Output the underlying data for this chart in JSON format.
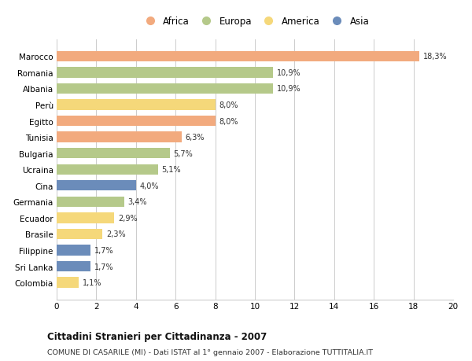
{
  "countries": [
    "Marocco",
    "Romania",
    "Albania",
    "Perù",
    "Egitto",
    "Tunisia",
    "Bulgaria",
    "Ucraina",
    "Cina",
    "Germania",
    "Ecuador",
    "Brasile",
    "Filippine",
    "Sri Lanka",
    "Colombia"
  ],
  "values": [
    18.3,
    10.9,
    10.9,
    8.0,
    8.0,
    6.3,
    5.7,
    5.1,
    4.0,
    3.4,
    2.9,
    2.3,
    1.7,
    1.7,
    1.1
  ],
  "continents": [
    "Africa",
    "Europa",
    "Europa",
    "America",
    "Africa",
    "Africa",
    "Europa",
    "Europa",
    "Asia",
    "Europa",
    "America",
    "America",
    "Asia",
    "Asia",
    "America"
  ],
  "labels": [
    "18,3%",
    "10,9%",
    "10,9%",
    "8,0%",
    "8,0%",
    "6,3%",
    "5,7%",
    "5,1%",
    "4,0%",
    "3,4%",
    "2,9%",
    "2,3%",
    "1,7%",
    "1,7%",
    "1,1%"
  ],
  "colors": {
    "Africa": "#f2aa7e",
    "Europa": "#b5c98a",
    "America": "#f5d87a",
    "Asia": "#6b8cba"
  },
  "legend_order": [
    "Africa",
    "Europa",
    "America",
    "Asia"
  ],
  "xlim": [
    0,
    20
  ],
  "xticks": [
    0,
    2,
    4,
    6,
    8,
    10,
    12,
    14,
    16,
    18,
    20
  ],
  "title": "Cittadini Stranieri per Cittadinanza - 2007",
  "subtitle": "COMUNE DI CASARILE (MI) - Dati ISTAT al 1° gennaio 2007 - Elaborazione TUTTITALIA.IT",
  "bg_color": "#ffffff",
  "grid_color": "#cccccc"
}
